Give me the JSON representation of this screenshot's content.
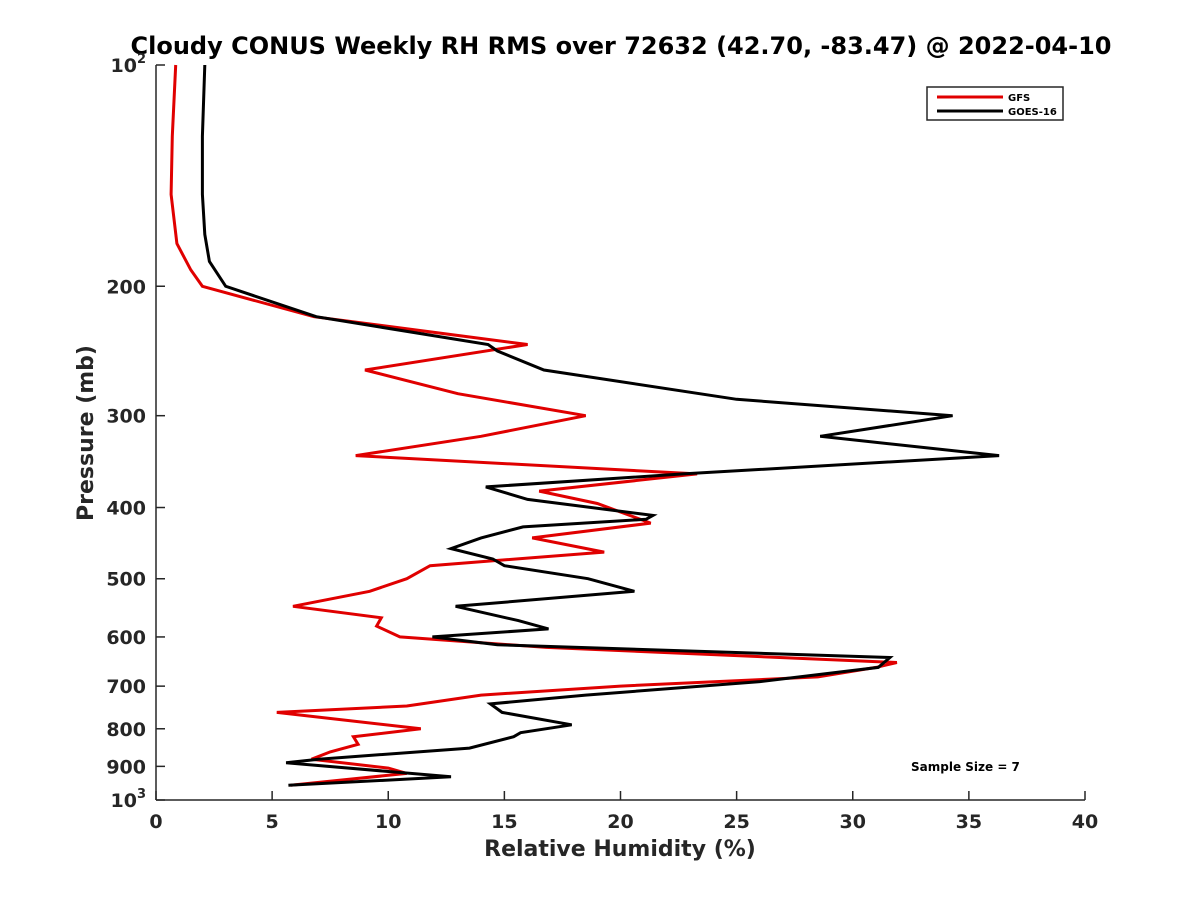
{
  "chart_data": {
    "type": "line",
    "title": "Cloudy CONUS Weekly RH RMS over 72632 (42.70, -83.47) @ 2022-04-10",
    "xlabel": "Relative Humidity (%)",
    "ylabel": "Pressure (mb)",
    "xlim": [
      0,
      40
    ],
    "ylim": [
      100,
      1000
    ],
    "yscale": "log",
    "y_reversed": true,
    "grid": false,
    "legend_position": "top-right",
    "x_ticks": [
      {
        "value": 0,
        "label": "0"
      },
      {
        "value": 5,
        "label": "5"
      },
      {
        "value": 10,
        "label": "10"
      },
      {
        "value": 15,
        "label": "15"
      },
      {
        "value": 20,
        "label": "20"
      },
      {
        "value": 25,
        "label": "25"
      },
      {
        "value": 30,
        "label": "30"
      },
      {
        "value": 35,
        "label": "35"
      },
      {
        "value": 40,
        "label": "40"
      }
    ],
    "y_ticks": [
      {
        "value": 100,
        "label": "10",
        "sup": "2"
      },
      {
        "value": 200,
        "label": "200"
      },
      {
        "value": 300,
        "label": "300"
      },
      {
        "value": 400,
        "label": "400"
      },
      {
        "value": 500,
        "label": "500"
      },
      {
        "value": 600,
        "label": "600"
      },
      {
        "value": 700,
        "label": "700"
      },
      {
        "value": 800,
        "label": "800"
      },
      {
        "value": 900,
        "label": "900"
      },
      {
        "value": 1000,
        "label": "10",
        "sup": "3"
      }
    ],
    "series": [
      {
        "name": "GFS",
        "color": "#e00000",
        "points": [
          [
            0.85,
            100
          ],
          [
            0.7,
            125
          ],
          [
            0.65,
            150
          ],
          [
            0.9,
            175
          ],
          [
            1.5,
            190
          ],
          [
            2.0,
            200
          ],
          [
            6.8,
            220
          ],
          [
            16.0,
            240
          ],
          [
            9.0,
            260
          ],
          [
            13.0,
            280
          ],
          [
            18.5,
            300
          ],
          [
            14.0,
            320
          ],
          [
            8.6,
            340
          ],
          [
            23.3,
            360
          ],
          [
            16.5,
            380
          ],
          [
            19.0,
            395
          ],
          [
            21.3,
            420
          ],
          [
            16.2,
            440
          ],
          [
            19.3,
            460
          ],
          [
            11.8,
            480
          ],
          [
            10.8,
            500
          ],
          [
            9.2,
            520
          ],
          [
            5.9,
            545
          ],
          [
            9.7,
            565
          ],
          [
            9.5,
            580
          ],
          [
            10.5,
            600
          ],
          [
            16.8,
            620
          ],
          [
            31.9,
            650
          ],
          [
            31.0,
            660
          ],
          [
            28.5,
            680
          ],
          [
            20.0,
            700
          ],
          [
            14.0,
            720
          ],
          [
            10.8,
            745
          ],
          [
            5.2,
            760
          ],
          [
            11.4,
            800
          ],
          [
            8.5,
            820
          ],
          [
            8.7,
            840
          ],
          [
            7.5,
            860
          ],
          [
            6.7,
            880
          ],
          [
            10.0,
            905
          ],
          [
            10.8,
            920
          ],
          [
            5.8,
            955
          ]
        ]
      },
      {
        "name": "GOES-16",
        "color": "#000000",
        "points": [
          [
            2.1,
            100
          ],
          [
            2.0,
            125
          ],
          [
            2.0,
            150
          ],
          [
            2.1,
            170
          ],
          [
            2.3,
            185
          ],
          [
            3.0,
            200
          ],
          [
            6.9,
            220
          ],
          [
            14.3,
            240
          ],
          [
            14.7,
            245
          ],
          [
            16.7,
            260
          ],
          [
            25.0,
            285
          ],
          [
            34.3,
            300
          ],
          [
            28.6,
            320
          ],
          [
            36.3,
            340
          ],
          [
            22.7,
            360
          ],
          [
            14.2,
            375
          ],
          [
            16.0,
            390
          ],
          [
            21.4,
            410
          ],
          [
            21.1,
            415
          ],
          [
            15.8,
            425
          ],
          [
            14.0,
            440
          ],
          [
            12.7,
            455
          ],
          [
            14.5,
            470
          ],
          [
            15.0,
            480
          ],
          [
            18.6,
            500
          ],
          [
            20.6,
            520
          ],
          [
            12.9,
            545
          ],
          [
            15.6,
            570
          ],
          [
            16.9,
            585
          ],
          [
            11.9,
            600
          ],
          [
            14.7,
            615
          ],
          [
            31.6,
            640
          ],
          [
            31.1,
            660
          ],
          [
            26.0,
            690
          ],
          [
            18.5,
            720
          ],
          [
            14.4,
            740
          ],
          [
            14.9,
            760
          ],
          [
            17.9,
            790
          ],
          [
            15.7,
            810
          ],
          [
            15.4,
            820
          ],
          [
            13.5,
            850
          ],
          [
            7.0,
            880
          ],
          [
            5.6,
            890
          ],
          [
            12.7,
            930
          ],
          [
            5.7,
            955
          ]
        ]
      }
    ],
    "annotation": "Sample Size = 7"
  }
}
